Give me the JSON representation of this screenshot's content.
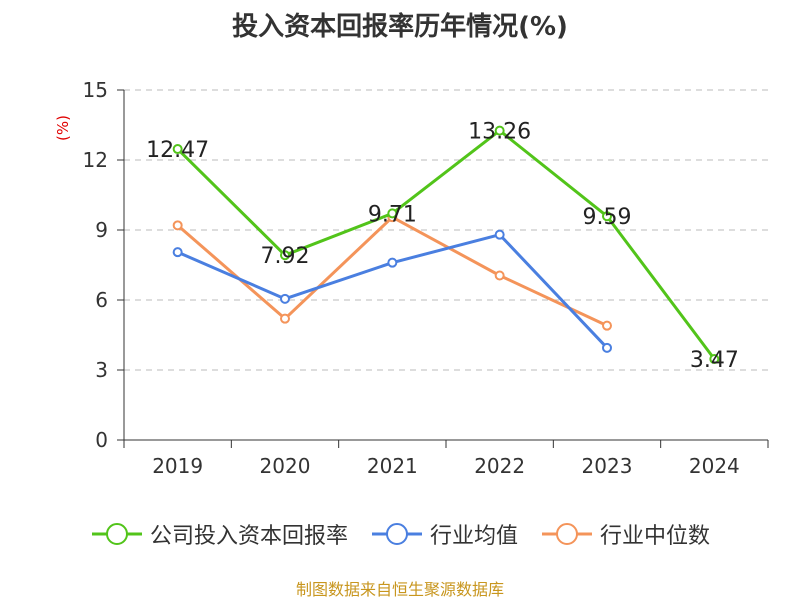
{
  "chart_data": {
    "type": "line",
    "title": "投入资本回报率历年情况(%)",
    "ylabel": "(%)",
    "xlabel": "",
    "categories": [
      "2019",
      "2020",
      "2021",
      "2022",
      "2023",
      "2024"
    ],
    "ylim": [
      0,
      15
    ],
    "yticks": [
      0,
      3,
      6,
      9,
      12,
      15
    ],
    "grid": true,
    "legend_position": "bottom",
    "series": [
      {
        "name": "公司投入资本回报率",
        "color": "#52c41a",
        "values": [
          12.47,
          7.92,
          9.71,
          13.26,
          9.59,
          3.47
        ],
        "labels": [
          "12.47",
          "7.92",
          "9.71",
          "13.26",
          "9.59",
          "3.47"
        ]
      },
      {
        "name": "行业均值",
        "color": "#4a7fe0",
        "values": [
          8.05,
          6.05,
          7.6,
          8.8,
          3.95,
          null
        ]
      },
      {
        "name": "行业中位数",
        "color": "#f4945a",
        "values": [
          9.2,
          5.2,
          9.55,
          7.05,
          4.9,
          null
        ]
      }
    ]
  },
  "source": "制图数据来自恒生聚源数据库"
}
